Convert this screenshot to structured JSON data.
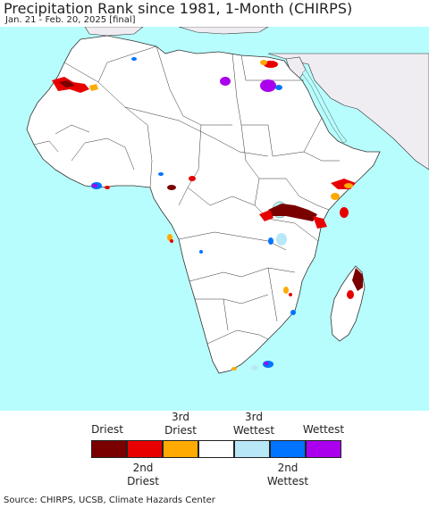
{
  "title": "Precipitation Rank since 1981, 1-Month (CHIRPS)",
  "subtitle": "Jan. 21 - Feb. 20, 2025 [final]",
  "legend": {
    "top_labels": [
      "Driest",
      "3rd\nDriest",
      "3rd\nWettest",
      "Wettest"
    ],
    "bottom_labels": [
      "2nd\nDriest",
      "2nd\nWettest"
    ],
    "colors": [
      "#7a0000",
      "#e80000",
      "#ffaa00",
      "#ffffff",
      "#b8e8f8",
      "#0073ff",
      "#aa00ee"
    ]
  },
  "map_colors": {
    "ocean": "#b8fdfd",
    "land": "#ffffff",
    "outside_land": "#efecf2",
    "border": "#333333"
  },
  "source": "Source: CHIRPS, UCSB, Climate Hazards Center"
}
